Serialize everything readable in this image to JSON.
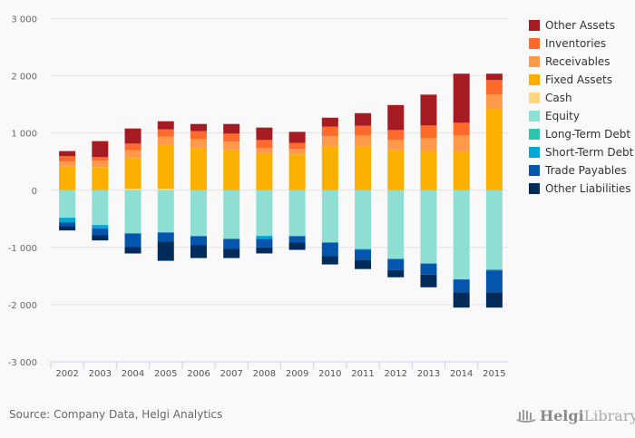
{
  "chart_data": {
    "type": "bar",
    "stacked": true,
    "title": "",
    "xlabel": "",
    "ylabel": "",
    "ylim": [
      -3000,
      3000
    ],
    "yticks": [
      3000,
      2000,
      1000,
      0,
      -1000,
      -2000,
      -3000
    ],
    "ytick_labels": [
      "3 000",
      "2 000",
      "1 000",
      "0",
      "-1 000",
      "-2 000",
      "-3 000"
    ],
    "grid": true,
    "legend_position": "right",
    "categories": [
      "2002",
      "2003",
      "2004",
      "2005",
      "2006",
      "2007",
      "2008",
      "2009",
      "2010",
      "2011",
      "2012",
      "2013",
      "2014",
      "2015"
    ],
    "series": [
      {
        "name": "Other Assets",
        "color": "#a51b21",
        "values": [
          90,
          280,
          264,
          142,
          126,
          169,
          217,
          194,
          158,
          221,
          437,
          539,
          858,
          112
        ]
      },
      {
        "name": "Inventories",
        "color": "#ff6a2a",
        "values": [
          94,
          63,
          115,
          126,
          138,
          142,
          142,
          106,
          168,
          169,
          174,
          223,
          222,
          254
        ]
      },
      {
        "name": "Receivables",
        "color": "#ff9a4a",
        "values": [
          80,
          110,
          138,
          137,
          158,
          142,
          95,
          94,
          174,
          189,
          173,
          222,
          286,
          248
        ]
      },
      {
        "name": "Fixed Assets",
        "color": "#fbb000",
        "values": [
          420,
          405,
          537,
          775,
          736,
          705,
          641,
          626,
          768,
          768,
          705,
          687,
          671,
          1423
        ]
      },
      {
        "name": "Cash",
        "color": "#fdd67f",
        "values": [
          0,
          0,
          25,
          25,
          0,
          0,
          0,
          0,
          0,
          0,
          0,
          0,
          0,
          0
        ]
      },
      {
        "name": "Equity",
        "color": "#8fded4",
        "values": [
          -481,
          -608,
          -755,
          -739,
          -803,
          -851,
          -798,
          -803,
          -915,
          -1027,
          -1202,
          -1282,
          -1560,
          -1386
        ]
      },
      {
        "name": "Long-Term Debt",
        "color": "#2fc4b0",
        "values": [
          0,
          0,
          0,
          0,
          0,
          0,
          0,
          0,
          0,
          0,
          0,
          0,
          0,
          0
        ]
      },
      {
        "name": "Short-Term Debt",
        "color": "#05a6d6",
        "values": [
          -79,
          -63,
          0,
          0,
          0,
          0,
          -53,
          0,
          0,
          -16,
          0,
          0,
          0,
          -16
        ]
      },
      {
        "name": "Trade Payables",
        "color": "#0455ad",
        "values": [
          -64,
          -111,
          -240,
          -160,
          -160,
          -176,
          -149,
          -112,
          -239,
          -175,
          -192,
          -192,
          -223,
          -381
        ]
      },
      {
        "name": "Other Liabilities",
        "color": "#012c5a",
        "values": [
          -79,
          -96,
          -111,
          -335,
          -223,
          -159,
          -105,
          -128,
          -144,
          -160,
          -128,
          -223,
          -269,
          -269
        ]
      }
    ]
  },
  "footer": {
    "source": "Source: Company Data, Helgi Analytics",
    "logo_bold": "Helgi",
    "logo_light": "Library."
  }
}
